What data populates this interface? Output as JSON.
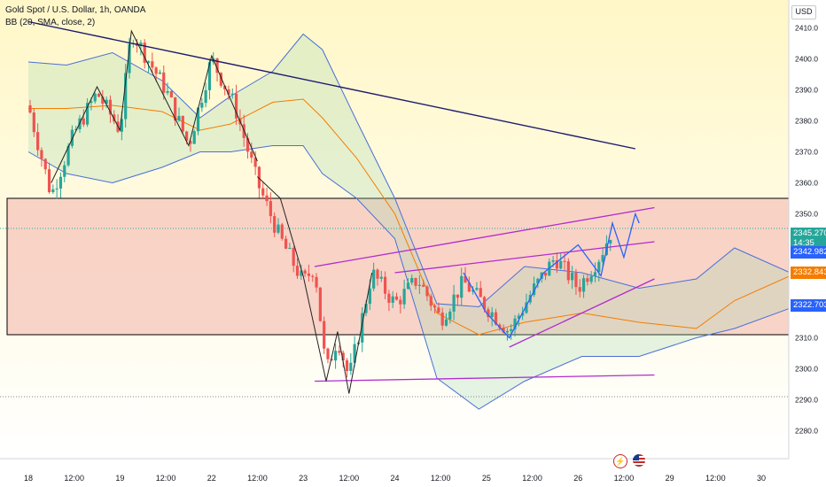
{
  "legend": {
    "title": "Gold Spot / U.S. Dollar, 1h, OANDA",
    "bb": "BB (20, SMA, close, 2)"
  },
  "currency": "USD",
  "colors": {
    "up": "#26a69a",
    "down": "#ef5350",
    "bg_top": "#fff7c7",
    "bg_bottom": "#ffffff",
    "zone_fill": "#f6c6bb",
    "bb_band": "#4a6fd8",
    "basis": "#f57c00",
    "trend_line": "#1e1b6e",
    "channel": "#b12ccf",
    "projection": "#2962ff"
  },
  "price_tags": {
    "current": {
      "value": "2345.270",
      "countdown": "14:35",
      "color": "#26a69a"
    },
    "bb_upper": {
      "value": "2342.982",
      "color": "#2962ff"
    },
    "bb_basis": {
      "value": "2332.843",
      "color": "#f57c00"
    },
    "bb_lower": {
      "value": "2322.703",
      "color": "#2962ff"
    }
  },
  "chart_data": {
    "type": "candlestick",
    "title": "Gold Spot / U.S. Dollar, 1h, OANDA",
    "indicator": "BB (20, SMA, close, 2)",
    "ylim": [
      2273,
      2417
    ],
    "y_ticks": [
      2280,
      2290,
      2300,
      2310,
      2320,
      2330,
      2340,
      2350,
      2360,
      2370,
      2380,
      2390,
      2400,
      2410
    ],
    "x_ticks": [
      "18",
      "12:00",
      "19",
      "12:00",
      "22",
      "12:00",
      "23",
      "12:00",
      "24",
      "12:00",
      "25",
      "12:00",
      "26",
      "12:00",
      "29",
      "12:00",
      "30"
    ],
    "price_anchors": [
      {
        "t": "18 00:00",
        "price": 2385
      },
      {
        "t": "18 06:00",
        "price": 2356
      },
      {
        "t": "18 12:00",
        "price": 2376
      },
      {
        "t": "18 18:00",
        "price": 2389
      },
      {
        "t": "19 00:00",
        "price": 2377
      },
      {
        "t": "19 03:00",
        "price": 2409
      },
      {
        "t": "19 12:00",
        "price": 2390
      },
      {
        "t": "19 18:00",
        "price": 2372
      },
      {
        "t": "22 00:00",
        "price": 2400
      },
      {
        "t": "22 06:00",
        "price": 2385
      },
      {
        "t": "22 12:00",
        "price": 2360
      },
      {
        "t": "22 18:00",
        "price": 2342
      },
      {
        "t": "23 00:00",
        "price": 2328
      },
      {
        "t": "23 03:00",
        "price": 2333
      },
      {
        "t": "23 06:00",
        "price": 2299
      },
      {
        "t": "23 09:00",
        "price": 2310
      },
      {
        "t": "23 12:00",
        "price": 2297
      },
      {
        "t": "23 18:00",
        "price": 2331
      },
      {
        "t": "24 00:00",
        "price": 2321
      },
      {
        "t": "24 06:00",
        "price": 2329
      },
      {
        "t": "24 12:00",
        "price": 2316
      },
      {
        "t": "24 18:00",
        "price": 2328
      },
      {
        "t": "25 00:00",
        "price": 2320
      },
      {
        "t": "25 06:00",
        "price": 2312
      },
      {
        "t": "25 12:00",
        "price": 2325
      },
      {
        "t": "25 18:00",
        "price": 2336
      },
      {
        "t": "26 00:00",
        "price": 2326
      },
      {
        "t": "26 06:00",
        "price": 2337
      },
      {
        "t": "26 09:00",
        "price": 2345.27
      }
    ],
    "bollinger": {
      "upper": [
        [
          0,
          2399
        ],
        [
          10,
          2398
        ],
        [
          22,
          2402
        ],
        [
          35,
          2393
        ],
        [
          45,
          2381
        ],
        [
          53,
          2388
        ],
        [
          64,
          2396
        ],
        [
          72,
          2408
        ],
        [
          77,
          2403
        ],
        [
          86,
          2380
        ],
        [
          96,
          2355
        ],
        [
          107,
          2321
        ],
        [
          118,
          2320
        ],
        [
          130,
          2333
        ],
        [
          145,
          2331
        ],
        [
          160,
          2326
        ],
        [
          175,
          2329
        ],
        [
          185,
          2339
        ],
        [
          205,
          2328
        ]
      ],
      "basis": [
        [
          0,
          2384
        ],
        [
          10,
          2384
        ],
        [
          22,
          2385
        ],
        [
          35,
          2383
        ],
        [
          45,
          2377
        ],
        [
          53,
          2379
        ],
        [
          64,
          2386
        ],
        [
          72,
          2387
        ],
        [
          77,
          2381
        ],
        [
          86,
          2368
        ],
        [
          96,
          2350
        ],
        [
          107,
          2318
        ],
        [
          118,
          2311
        ],
        [
          130,
          2315
        ],
        [
          145,
          2318
        ],
        [
          160,
          2315
        ],
        [
          175,
          2313
        ],
        [
          185,
          2322
        ],
        [
          205,
          2333
        ]
      ],
      "lower": [
        [
          0,
          2370
        ],
        [
          10,
          2363
        ],
        [
          22,
          2360
        ],
        [
          35,
          2365
        ],
        [
          45,
          2370
        ],
        [
          53,
          2370
        ],
        [
          64,
          2372
        ],
        [
          72,
          2372
        ],
        [
          77,
          2363
        ],
        [
          86,
          2355
        ],
        [
          96,
          2342
        ],
        [
          107,
          2297
        ],
        [
          118,
          2287
        ],
        [
          130,
          2296
        ],
        [
          145,
          2304
        ],
        [
          160,
          2304
        ],
        [
          175,
          2310
        ],
        [
          185,
          2313
        ],
        [
          205,
          2322
        ]
      ]
    },
    "zones": [
      {
        "type": "rectangle",
        "top": 2355,
        "bottom": 2311
      }
    ],
    "levels": [
      {
        "type": "dotted",
        "price": 2345.27
      },
      {
        "type": "dotted",
        "price": 2291
      }
    ],
    "drawings": [
      {
        "type": "trendline",
        "from": {
          "t": "18 00:00",
          "price": 2412
        },
        "to": {
          "t": "26 15:00",
          "price": 2371
        }
      },
      {
        "type": "channel_top",
        "from": {
          "t": "23 03:00",
          "price": 2333
        },
        "to": {
          "t": "26 20:00",
          "price": 2352
        }
      },
      {
        "type": "channel_mid",
        "from": {
          "t": "24 00:00",
          "price": 2331
        },
        "to": {
          "t": "26 20:00",
          "price": 2341
        }
      },
      {
        "type": "channel_bottom",
        "from": {
          "t": "23 03:00",
          "price": 2296
        },
        "to": {
          "t": "26 20:00",
          "price": 2298
        }
      },
      {
        "type": "rising_line",
        "from": {
          "t": "25 06:00",
          "price": 2307
        },
        "to": {
          "t": "26 20:00",
          "price": 2329
        }
      }
    ]
  }
}
